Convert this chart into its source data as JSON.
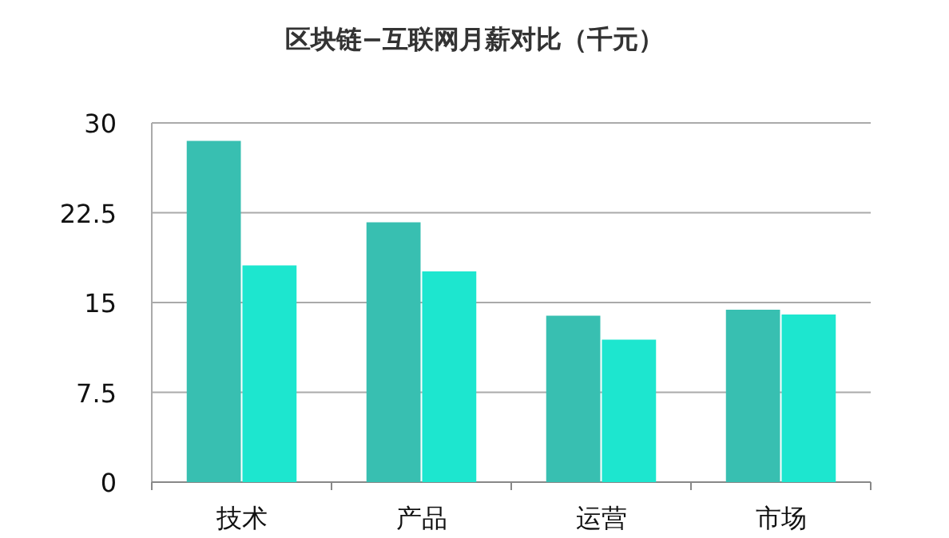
{
  "chart_data": {
    "type": "bar",
    "title": "区块链−互联网月薪对比（千元）",
    "categories": [
      "技术",
      "产品",
      "运营",
      "市场"
    ],
    "series": [
      {
        "color": "#38bfb1",
        "values": [
          28.5,
          21.7,
          13.9,
          14.4
        ]
      },
      {
        "color": "#1de6cf",
        "values": [
          18.1,
          17.6,
          11.9,
          14.0
        ]
      }
    ],
    "ylim": [
      0,
      30
    ],
    "yticks": [
      0,
      7.5,
      15,
      22.5,
      30
    ],
    "grid": "y"
  }
}
